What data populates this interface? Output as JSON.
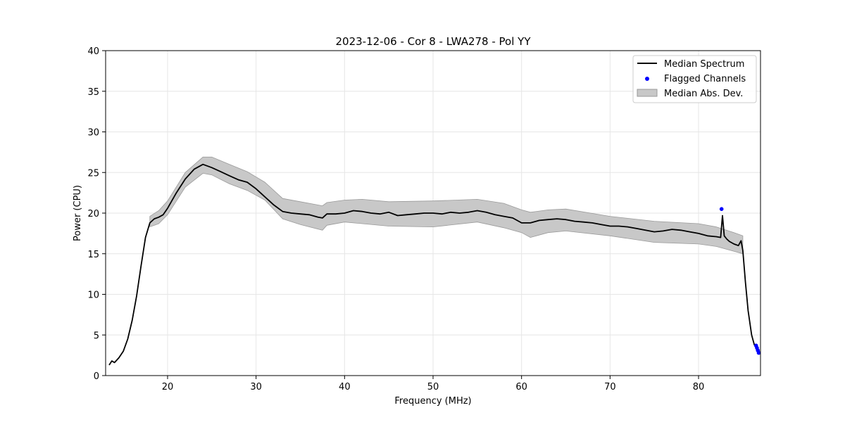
{
  "chart_data": {
    "type": "line",
    "title": "2023-12-06 - Cor 8 - LWA278 - Pol YY",
    "xlabel": "Frequency (MHz)",
    "ylabel": "Power (CPU)",
    "xlim": [
      13,
      87
    ],
    "ylim": [
      0,
      40
    ],
    "xticks": [
      20,
      30,
      40,
      50,
      60,
      70,
      80
    ],
    "yticks": [
      0,
      5,
      10,
      15,
      20,
      25,
      30,
      35,
      40
    ],
    "grid": true,
    "legend_position": "top-right",
    "legend": {
      "median_label": "Median Spectrum",
      "flagged_label": "Flagged Channels",
      "mad_label": "Median Abs. Dev."
    },
    "colors": {
      "median": "#000000",
      "flagged": "#0000ff",
      "mad_fill": "#c8c8c8",
      "mad_edge": "#9a9a9a"
    },
    "series": [
      {
        "name": "Median Spectrum",
        "x": [
          13.4,
          13.7,
          14.0,
          14.5,
          15.0,
          15.5,
          16.0,
          16.5,
          17.0,
          17.5,
          18.0,
          18.5,
          19.0,
          19.5,
          20.0,
          21.0,
          22.0,
          23.0,
          24.0,
          25.0,
          26.0,
          27.0,
          28.0,
          29.0,
          30.0,
          31.0,
          32.0,
          33.0,
          34.0,
          35.0,
          36.0,
          37.0,
          37.5,
          38.0,
          39.0,
          40.0,
          41.0,
          42.0,
          43.0,
          44.0,
          45.0,
          46.0,
          47.0,
          48.0,
          49.0,
          50.0,
          51.0,
          52.0,
          53.0,
          54.0,
          55.0,
          56.0,
          57.0,
          58.0,
          59.0,
          60.0,
          61.0,
          62.0,
          63.0,
          64.0,
          65.0,
          66.0,
          67.0,
          68.0,
          69.0,
          70.0,
          71.0,
          72.0,
          73.0,
          74.0,
          75.0,
          76.0,
          77.0,
          78.0,
          79.0,
          80.0,
          81.0,
          82.0,
          82.5,
          82.7,
          82.9,
          83.2,
          83.5,
          84.0,
          84.5,
          84.8,
          85.0,
          85.3,
          85.6,
          86.0,
          86.3,
          86.6,
          86.8
        ],
        "values": [
          1.3,
          1.8,
          1.6,
          2.2,
          3.0,
          4.5,
          6.8,
          9.8,
          13.5,
          17.0,
          18.8,
          19.3,
          19.5,
          19.8,
          20.6,
          22.5,
          24.2,
          25.4,
          26.0,
          25.6,
          25.1,
          24.6,
          24.1,
          23.8,
          23.0,
          22.0,
          21.0,
          20.2,
          20.0,
          19.9,
          19.8,
          19.5,
          19.4,
          19.9,
          19.9,
          20.0,
          20.3,
          20.2,
          20.0,
          19.9,
          20.1,
          19.7,
          19.8,
          19.9,
          20.0,
          20.0,
          19.9,
          20.1,
          20.0,
          20.1,
          20.3,
          20.1,
          19.8,
          19.6,
          19.4,
          18.8,
          18.8,
          19.1,
          19.2,
          19.3,
          19.2,
          19.0,
          18.9,
          18.8,
          18.6,
          18.4,
          18.4,
          18.3,
          18.1,
          17.9,
          17.7,
          17.8,
          18.0,
          17.9,
          17.7,
          17.5,
          17.2,
          17.1,
          17.0,
          19.7,
          17.2,
          16.8,
          16.5,
          16.2,
          16.0,
          16.6,
          15.4,
          11.5,
          8.0,
          5.0,
          3.8,
          3.2,
          2.7
        ]
      }
    ],
    "mad_band": {
      "x": [
        18.0,
        19.0,
        20.0,
        22.0,
        24.0,
        25.0,
        27.0,
        29.0,
        31.0,
        33.0,
        35.0,
        37.5,
        38.0,
        40.0,
        42.0,
        45.0,
        50.0,
        55.0,
        58.0,
        60.0,
        61.0,
        63.0,
        65.0,
        70.0,
        75.0,
        80.0,
        82.0,
        84.0,
        85.0
      ],
      "upper": [
        19.6,
        20.3,
        21.5,
        25.0,
        26.9,
        26.9,
        26.0,
        25.1,
        23.8,
        21.8,
        21.4,
        20.9,
        21.3,
        21.6,
        21.7,
        21.4,
        21.5,
        21.7,
        21.2,
        20.4,
        20.1,
        20.4,
        20.5,
        19.6,
        19.0,
        18.7,
        18.3,
        17.6,
        17.2
      ],
      "lower": [
        18.3,
        18.7,
        19.8,
        23.2,
        24.9,
        24.7,
        23.6,
        22.8,
        21.6,
        19.3,
        18.6,
        17.9,
        18.5,
        18.9,
        18.7,
        18.4,
        18.3,
        18.9,
        18.2,
        17.6,
        17.0,
        17.6,
        17.8,
        17.2,
        16.4,
        16.2,
        15.9,
        15.3,
        15.0
      ]
    },
    "flagged": {
      "x": [
        82.6,
        86.5,
        86.6,
        86.7,
        86.8
      ],
      "values": [
        20.5,
        3.7,
        3.4,
        3.1,
        2.8
      ]
    }
  }
}
